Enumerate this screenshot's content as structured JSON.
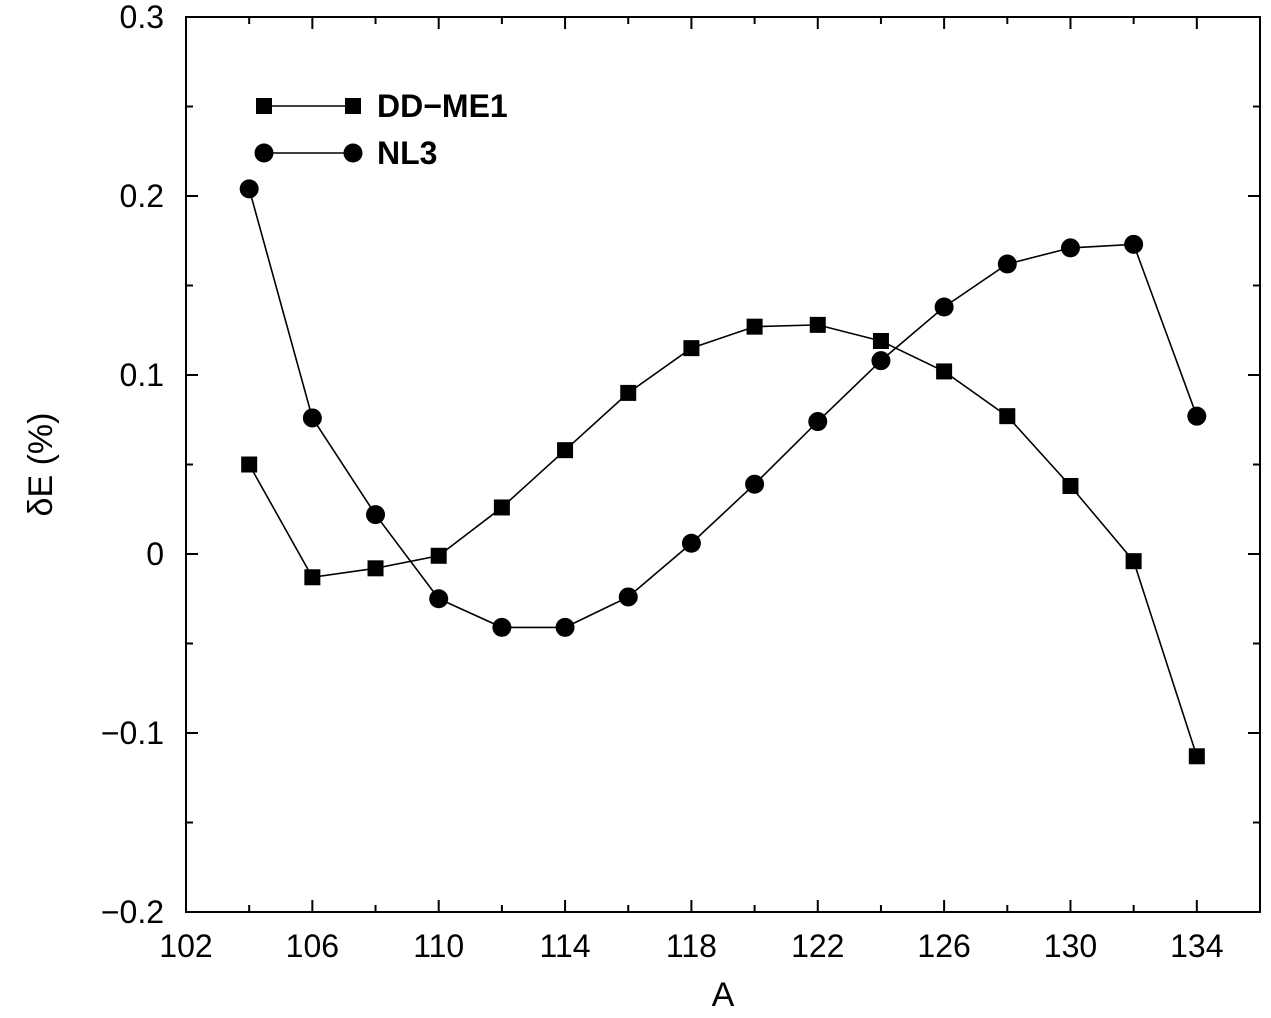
{
  "chart_data": {
    "type": "line",
    "xlabel": "A",
    "ylabel": "δE (%)",
    "xlim": [
      102,
      136
    ],
    "ylim": [
      -0.2,
      0.3
    ],
    "xticks": [
      102,
      106,
      110,
      114,
      118,
      122,
      126,
      130,
      134
    ],
    "xtick_labels": [
      "102",
      "106",
      "110",
      "114",
      "118",
      "122",
      "126",
      "130",
      "134"
    ],
    "yticks": [
      -0.2,
      -0.1,
      0,
      0.1,
      0.2,
      0.3
    ],
    "ytick_labels": [
      "−0.2",
      "−0.1",
      "0",
      "0.1",
      "0.2",
      "0.3"
    ],
    "grid": false,
    "legend_position": "top-left",
    "series": [
      {
        "name": "DD−ME1",
        "marker": "square",
        "color": "#000000",
        "x": [
          104,
          106,
          108,
          110,
          112,
          114,
          116,
          118,
          120,
          122,
          124,
          126,
          128,
          130,
          132,
          134
        ],
        "y": [
          0.05,
          -0.013,
          -0.008,
          -0.001,
          0.026,
          0.058,
          0.09,
          0.115,
          0.127,
          0.128,
          0.119,
          0.102,
          0.077,
          0.038,
          -0.004,
          -0.113
        ]
      },
      {
        "name": "NL3",
        "marker": "circle",
        "color": "#000000",
        "x": [
          104,
          106,
          108,
          110,
          112,
          114,
          116,
          118,
          120,
          122,
          124,
          126,
          128,
          130,
          132,
          134
        ],
        "y": [
          0.204,
          0.076,
          0.022,
          -0.025,
          -0.041,
          -0.041,
          -0.024,
          0.006,
          0.039,
          0.074,
          0.108,
          0.138,
          0.162,
          0.171,
          0.173,
          0.077
        ]
      }
    ]
  }
}
